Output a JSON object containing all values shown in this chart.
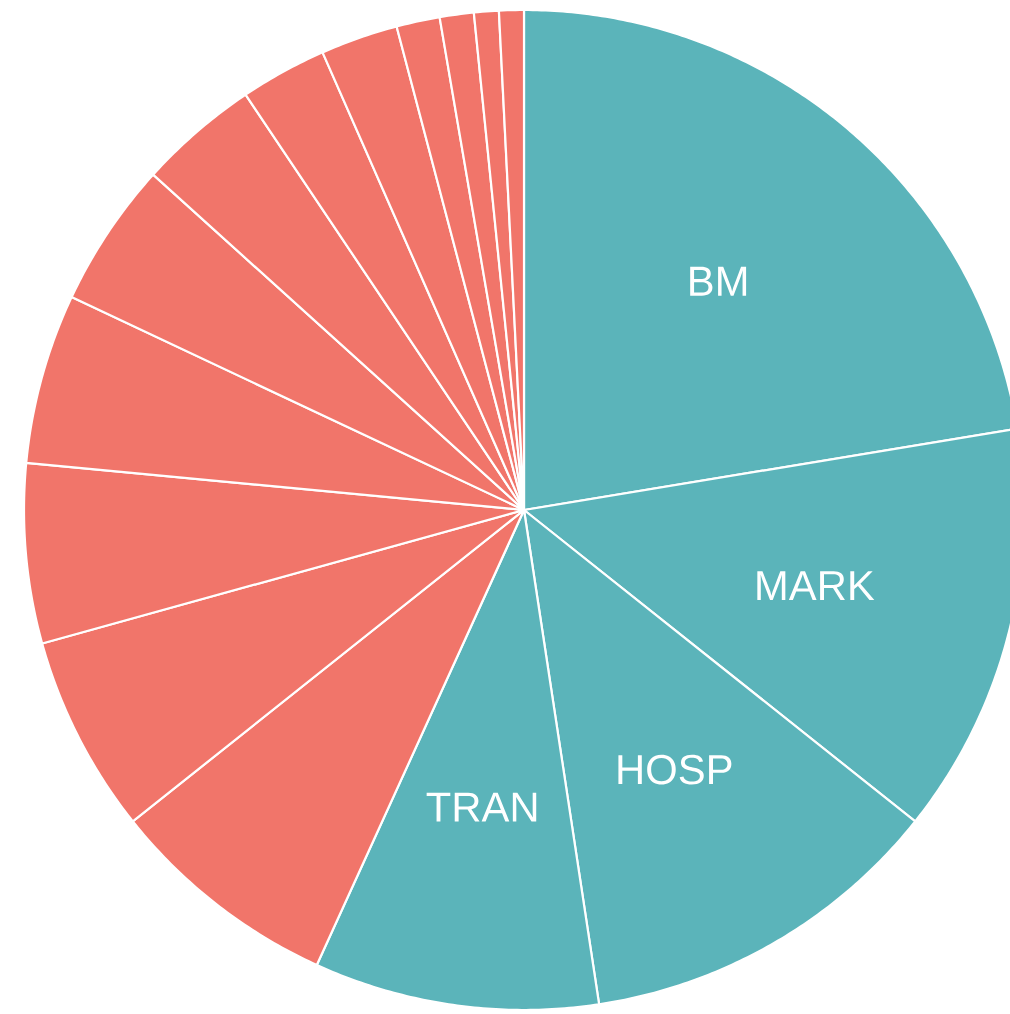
{
  "chart_data": {
    "type": "pie",
    "categories": [
      "BM",
      "MARK",
      "HOSP",
      "TRAN",
      null,
      null,
      null,
      null,
      null,
      null,
      null,
      null,
      null,
      null,
      null,
      null
    ],
    "values": [
      22.4,
      13.3,
      11.9,
      9.2,
      7.5,
      6.4,
      5.8,
      5.5,
      4.7,
      3.9,
      2.8,
      2.5,
      1.4,
      1.1,
      0.8,
      0.8
    ],
    "colors": [
      "#5bb4ba",
      "#5bb4ba",
      "#5bb4ba",
      "#5bb4ba",
      "#f1756a",
      "#f1756a",
      "#f1756a",
      "#f1756a",
      "#f1756a",
      "#f1756a",
      "#f1756a",
      "#f1756a",
      "#f1756a",
      "#f1756a",
      "#f1756a",
      "#f1756a"
    ]
  }
}
